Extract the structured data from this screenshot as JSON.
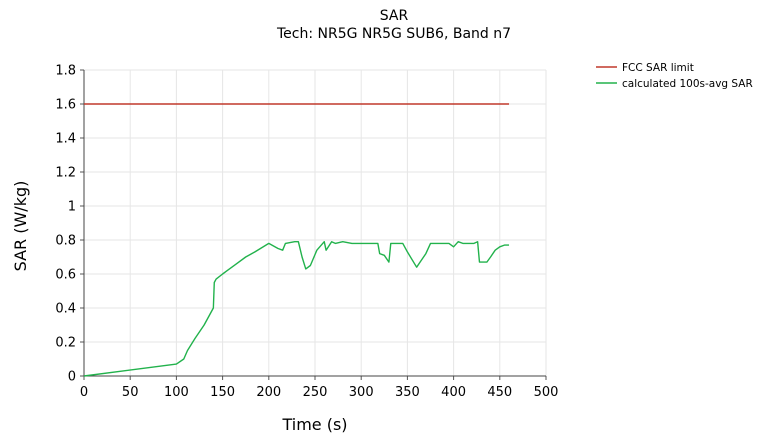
{
  "chart_data": {
    "type": "line",
    "title": "SAR",
    "subtitle": "Tech: NR5G NR5G SUB6, Band n7",
    "xlabel": "Time (s)",
    "ylabel": "SAR (W/kg)",
    "xlim": [
      0,
      500
    ],
    "ylim": [
      0,
      1.8
    ],
    "xticks": [
      "0",
      "50",
      "100",
      "150",
      "200",
      "250",
      "300",
      "350",
      "400",
      "450",
      "500"
    ],
    "yticks": [
      "0",
      "0.2",
      "0.4",
      "0.6",
      "0.8",
      "1",
      "1.2",
      "1.4",
      "1.6",
      "1.8"
    ],
    "grid": "vertical and horizontal light gray",
    "legend_position": "top-right outside",
    "series": [
      {
        "name": "FCC SAR limit",
        "color": "#c0392b",
        "x": [
          0,
          460
        ],
        "y": [
          1.6,
          1.6
        ]
      },
      {
        "name": "calculated 100s-avg SAR",
        "color": "#22b24c",
        "x": [
          0,
          100,
          108,
          112,
          120,
          130,
          140,
          141,
          143,
          150,
          155,
          165,
          175,
          185,
          200,
          210,
          215,
          218,
          228,
          232,
          236,
          240,
          245,
          252,
          260,
          262,
          268,
          272,
          280,
          290,
          300,
          310,
          318,
          320,
          325,
          330,
          332,
          338,
          345,
          350,
          360,
          365,
          370,
          375,
          385,
          395,
          400,
          405,
          410,
          418,
          422,
          426,
          428,
          432,
          436,
          440,
          445,
          450,
          455,
          460
        ],
        "y": [
          0,
          0.07,
          0.1,
          0.15,
          0.22,
          0.3,
          0.4,
          0.55,
          0.57,
          0.6,
          0.62,
          0.66,
          0.7,
          0.73,
          0.78,
          0.75,
          0.74,
          0.78,
          0.79,
          0.79,
          0.7,
          0.63,
          0.65,
          0.74,
          0.79,
          0.74,
          0.79,
          0.78,
          0.79,
          0.78,
          0.78,
          0.78,
          0.78,
          0.72,
          0.71,
          0.67,
          0.78,
          0.78,
          0.78,
          0.73,
          0.64,
          0.68,
          0.72,
          0.78,
          0.78,
          0.78,
          0.76,
          0.79,
          0.78,
          0.78,
          0.78,
          0.79,
          0.67,
          0.67,
          0.67,
          0.7,
          0.74,
          0.76,
          0.77,
          0.77
        ]
      }
    ]
  }
}
